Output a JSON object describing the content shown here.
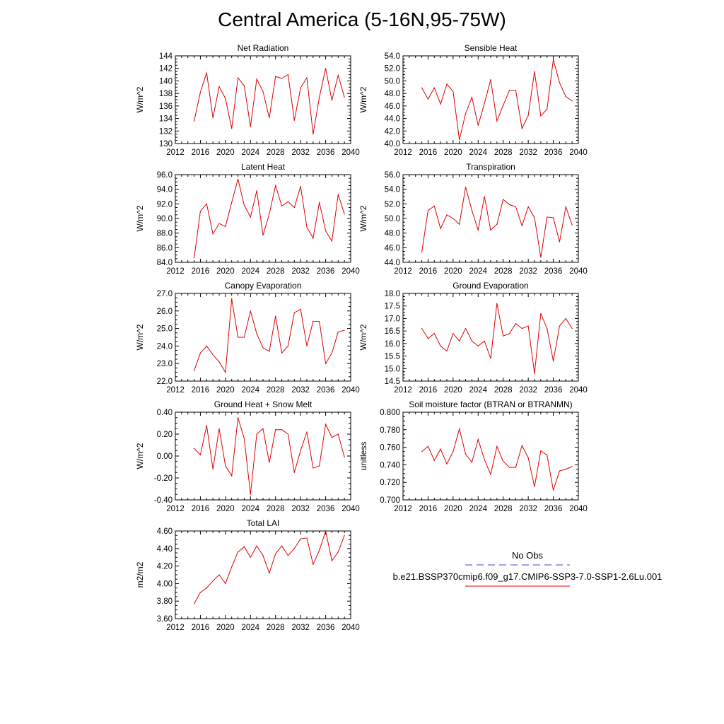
{
  "title": "Central America (5-16N,95-75W)",
  "legend": {
    "entries": [
      {
        "label": "No Obs",
        "color": "#4444cc",
        "style": "dashed"
      },
      {
        "label": "b.e21.BSSP370cmip6.f09_g17.CMIP6-SSP3-7.0-SSP1-2.6Lu.001",
        "color": "#e00000",
        "style": "solid"
      }
    ]
  },
  "chart_data": [
    {
      "type": "line",
      "title": "Net Radiation",
      "ylabel": "W/m^2",
      "xlim": [
        2012,
        2040
      ],
      "xticks": [
        2012,
        2016,
        2020,
        2024,
        2028,
        2032,
        2036,
        2040
      ],
      "ylim": [
        130,
        144
      ],
      "yticks": [
        130,
        132,
        134,
        136,
        138,
        140,
        142,
        144
      ],
      "ydec": 0,
      "x": [
        2015,
        2016,
        2017,
        2018,
        2019,
        2020,
        2021,
        2022,
        2023,
        2024,
        2025,
        2026,
        2027,
        2028,
        2029,
        2030,
        2031,
        2032,
        2033,
        2034,
        2035,
        2036,
        2037,
        2038,
        2039
      ],
      "series": [
        {
          "values": [
            133.6,
            138.2,
            141.3,
            134.1,
            139.1,
            137.2,
            132.4,
            140.5,
            139.2,
            132.7,
            140.3,
            138.3,
            134.1,
            140.7,
            140.4,
            141.0,
            133.7,
            138.9,
            140.5,
            131.5,
            137.4,
            142.0,
            136.9,
            140.9,
            137.4
          ],
          "color": "#e00000"
        }
      ]
    },
    {
      "type": "line",
      "title": "Sensible Heat",
      "ylabel": "W/m^2",
      "xlim": [
        2012,
        2040
      ],
      "xticks": [
        2012,
        2016,
        2020,
        2024,
        2028,
        2032,
        2036,
        2040
      ],
      "ylim": [
        40,
        54
      ],
      "yticks": [
        40,
        42,
        44,
        46,
        48,
        50,
        52,
        54
      ],
      "ydec": 1,
      "x": [
        2015,
        2016,
        2017,
        2018,
        2019,
        2020,
        2021,
        2022,
        2023,
        2024,
        2025,
        2026,
        2027,
        2028,
        2029,
        2030,
        2031,
        2032,
        2033,
        2034,
        2035,
        2036,
        2037,
        2038,
        2039
      ],
      "series": [
        {
          "values": [
            48.9,
            47.1,
            48.9,
            46.3,
            49.5,
            48.3,
            40.6,
            44.8,
            47.4,
            42.9,
            46.4,
            50.2,
            43.6,
            46.1,
            48.5,
            48.5,
            42.4,
            44.5,
            51.5,
            44.4,
            45.5,
            53.4,
            49.7,
            47.5,
            46.8
          ],
          "color": "#e00000"
        }
      ]
    },
    {
      "type": "line",
      "title": "Latent Heat",
      "ylabel": "W/m^2",
      "xlim": [
        2012,
        2040
      ],
      "xticks": [
        2012,
        2016,
        2020,
        2024,
        2028,
        2032,
        2036,
        2040
      ],
      "ylim": [
        84,
        96
      ],
      "yticks": [
        84,
        86,
        88,
        90,
        92,
        94,
        96
      ],
      "ydec": 1,
      "x": [
        2015,
        2016,
        2017,
        2018,
        2019,
        2020,
        2021,
        2022,
        2023,
        2024,
        2025,
        2026,
        2027,
        2028,
        2029,
        2030,
        2031,
        2032,
        2033,
        2034,
        2035,
        2036,
        2037,
        2038,
        2039
      ],
      "series": [
        {
          "values": [
            84.6,
            91.0,
            92.0,
            87.9,
            89.3,
            88.9,
            92.2,
            95.4,
            91.8,
            90.2,
            93.8,
            87.7,
            90.6,
            94.5,
            91.7,
            92.3,
            91.5,
            94.4,
            88.8,
            87.3,
            92.2,
            88.3,
            86.9,
            93.3,
            90.6
          ],
          "color": "#e00000"
        }
      ]
    },
    {
      "type": "line",
      "title": "Transpiration",
      "ylabel": "W/m^2",
      "xlim": [
        2012,
        2040
      ],
      "xticks": [
        2012,
        2016,
        2020,
        2024,
        2028,
        2032,
        2036,
        2040
      ],
      "ylim": [
        44,
        56
      ],
      "yticks": [
        44,
        46,
        48,
        50,
        52,
        54,
        56
      ],
      "ydec": 1,
      "x": [
        2015,
        2016,
        2017,
        2018,
        2019,
        2020,
        2021,
        2022,
        2023,
        2024,
        2025,
        2026,
        2027,
        2028,
        2029,
        2030,
        2031,
        2032,
        2033,
        2034,
        2035,
        2036,
        2037,
        2038,
        2039
      ],
      "series": [
        {
          "values": [
            45.4,
            51.1,
            51.7,
            48.6,
            50.5,
            50.0,
            49.2,
            54.3,
            51.1,
            48.4,
            53.0,
            48.4,
            49.2,
            52.6,
            51.9,
            51.6,
            49.0,
            51.6,
            50.1,
            44.7,
            50.2,
            50.1,
            46.8,
            51.6,
            49.1
          ],
          "color": "#e00000"
        }
      ]
    },
    {
      "type": "line",
      "title": "Canopy Evaporation",
      "ylabel": "W/m^2",
      "xlim": [
        2012,
        2040
      ],
      "xticks": [
        2012,
        2016,
        2020,
        2024,
        2028,
        2032,
        2036,
        2040
      ],
      "ylim": [
        22,
        27
      ],
      "yticks": [
        22,
        23,
        24,
        25,
        26,
        27
      ],
      "ydec": 1,
      "x": [
        2015,
        2016,
        2017,
        2018,
        2019,
        2020,
        2021,
        2022,
        2023,
        2024,
        2025,
        2026,
        2027,
        2028,
        2029,
        2030,
        2031,
        2032,
        2033,
        2034,
        2035,
        2036,
        2037,
        2038,
        2039
      ],
      "series": [
        {
          "values": [
            22.6,
            23.6,
            24.0,
            23.5,
            23.1,
            22.5,
            26.7,
            24.5,
            24.5,
            26.0,
            24.7,
            23.9,
            23.7,
            25.7,
            23.6,
            24.0,
            25.9,
            26.1,
            24.0,
            25.4,
            25.4,
            23.0,
            23.6,
            24.8,
            24.9
          ],
          "color": "#e00000"
        }
      ]
    },
    {
      "type": "line",
      "title": "Ground Evaporation",
      "ylabel": "W/m^2",
      "xlim": [
        2012,
        2040
      ],
      "xticks": [
        2012,
        2016,
        2020,
        2024,
        2028,
        2032,
        2036,
        2040
      ],
      "ylim": [
        14.5,
        18
      ],
      "yticks": [
        14.5,
        15,
        15.5,
        16,
        16.5,
        17,
        17.5,
        18
      ],
      "ydec": 1,
      "x": [
        2015,
        2016,
        2017,
        2018,
        2019,
        2020,
        2021,
        2022,
        2023,
        2024,
        2025,
        2026,
        2027,
        2028,
        2029,
        2030,
        2031,
        2032,
        2033,
        2034,
        2035,
        2036,
        2037,
        2038,
        2039
      ],
      "series": [
        {
          "values": [
            16.6,
            16.2,
            16.4,
            15.9,
            15.7,
            16.4,
            16.1,
            16.6,
            16.1,
            15.9,
            16.1,
            15.4,
            17.6,
            16.3,
            16.4,
            16.8,
            16.6,
            16.7,
            14.8,
            17.2,
            16.6,
            15.3,
            16.7,
            17.0,
            16.6
          ],
          "color": "#e00000"
        }
      ]
    },
    {
      "type": "line",
      "title": "Ground Heat + Snow Melt",
      "ylabel": "W/m^2",
      "xlim": [
        2012,
        2040
      ],
      "xticks": [
        2012,
        2016,
        2020,
        2024,
        2028,
        2032,
        2036,
        2040
      ],
      "ylim": [
        -0.4,
        0.4
      ],
      "yticks": [
        -0.4,
        -0.2,
        0,
        0.2,
        0.4
      ],
      "ydec": 2,
      "x": [
        2015,
        2016,
        2017,
        2018,
        2019,
        2020,
        2021,
        2022,
        2023,
        2024,
        2025,
        2026,
        2027,
        2028,
        2029,
        2030,
        2031,
        2032,
        2033,
        2034,
        2035,
        2036,
        2037,
        2038,
        2039
      ],
      "series": [
        {
          "values": [
            0.07,
            0.01,
            0.28,
            -0.12,
            0.25,
            -0.09,
            -0.18,
            0.35,
            0.16,
            -0.35,
            0.2,
            0.25,
            -0.06,
            0.24,
            0.24,
            0.2,
            -0.15,
            0.05,
            0.22,
            -0.11,
            -0.09,
            0.29,
            0.17,
            0.2,
            -0.01
          ],
          "color": "#e00000"
        }
      ]
    },
    {
      "type": "line",
      "title": "Soil moisture factor (BTRAN or BTRANMN)",
      "ylabel": "unitless",
      "xlim": [
        2012,
        2040
      ],
      "xticks": [
        2012,
        2016,
        2020,
        2024,
        2028,
        2032,
        2036,
        2040
      ],
      "ylim": [
        0.7,
        0.8
      ],
      "yticks": [
        0.7,
        0.72,
        0.74,
        0.76,
        0.78,
        0.8
      ],
      "ydec": 3,
      "x": [
        2015,
        2016,
        2017,
        2018,
        2019,
        2020,
        2021,
        2022,
        2023,
        2024,
        2025,
        2026,
        2027,
        2028,
        2029,
        2030,
        2031,
        2032,
        2033,
        2034,
        2035,
        2036,
        2037,
        2038,
        2039
      ],
      "series": [
        {
          "values": [
            0.755,
            0.761,
            0.745,
            0.758,
            0.741,
            0.755,
            0.781,
            0.752,
            0.743,
            0.769,
            0.746,
            0.729,
            0.761,
            0.744,
            0.737,
            0.737,
            0.762,
            0.748,
            0.715,
            0.756,
            0.751,
            0.711,
            0.733,
            0.735,
            0.738
          ],
          "color": "#e00000"
        }
      ]
    },
    {
      "type": "line",
      "title": "Total LAI",
      "ylabel": "m2/m2",
      "xlim": [
        2012,
        2040
      ],
      "xticks": [
        2012,
        2016,
        2020,
        2024,
        2028,
        2032,
        2036,
        2040
      ],
      "ylim": [
        3.6,
        4.6
      ],
      "yticks": [
        3.6,
        3.8,
        4.0,
        4.2,
        4.4,
        4.6
      ],
      "ydec": 2,
      "x": [
        2015,
        2016,
        2017,
        2018,
        2019,
        2020,
        2021,
        2022,
        2023,
        2024,
        2025,
        2026,
        2027,
        2028,
        2029,
        2030,
        2031,
        2032,
        2033,
        2034,
        2035,
        2036,
        2037,
        2038,
        2039
      ],
      "series": [
        {
          "values": [
            3.77,
            3.9,
            3.95,
            4.03,
            4.1,
            4.0,
            4.19,
            4.36,
            4.42,
            4.3,
            4.43,
            4.32,
            4.12,
            4.34,
            4.43,
            4.32,
            4.4,
            4.51,
            4.52,
            4.22,
            4.38,
            4.6,
            4.26,
            4.36,
            4.55
          ],
          "color": "#e00000"
        }
      ]
    }
  ]
}
